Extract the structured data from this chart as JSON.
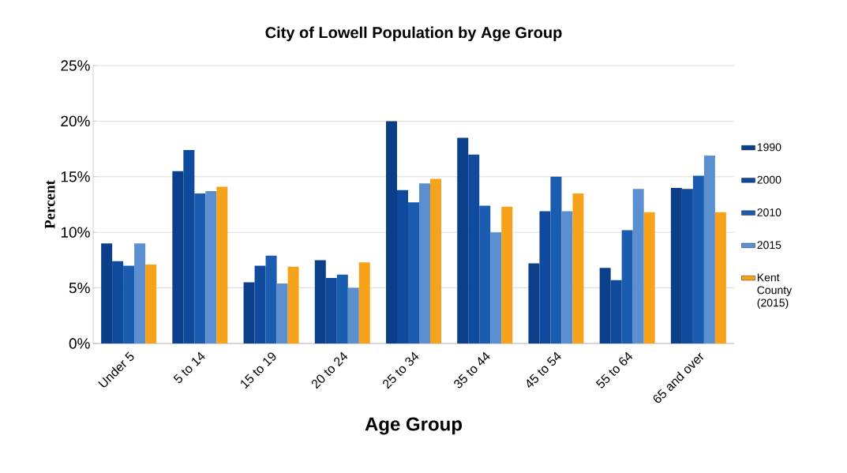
{
  "chart_data": {
    "type": "bar",
    "title": "City of Lowell Population by Age Group",
    "xlabel": "Age Group",
    "ylabel": "Percent",
    "categories": [
      "Under 5",
      "5 to 14",
      "15 to 19",
      "20 to 24",
      "25 to 34",
      "35 to 44",
      "45 to 54",
      "55 to 64",
      "65 and over"
    ],
    "series": [
      {
        "name": "1990",
        "color": "#0b3f8a",
        "values": [
          9.0,
          15.5,
          5.5,
          7.5,
          20.0,
          18.5,
          7.2,
          6.8,
          14.0
        ]
      },
      {
        "name": "2000",
        "color": "#104a9c",
        "values": [
          7.4,
          17.4,
          7.0,
          5.9,
          13.8,
          17.0,
          11.9,
          5.7,
          13.9
        ]
      },
      {
        "name": "2010",
        "color": "#1a5cb0",
        "values": [
          7.0,
          13.5,
          7.9,
          6.2,
          12.7,
          12.4,
          15.0,
          10.2,
          15.1
        ]
      },
      {
        "name": "2015",
        "color": "#5b8fd0",
        "values": [
          9.0,
          13.7,
          5.4,
          5.0,
          14.4,
          10.0,
          11.9,
          13.9,
          16.9
        ]
      },
      {
        "name": "Kent County (2015)",
        "color": "#f7a21b",
        "values": [
          7.1,
          14.1,
          6.9,
          7.3,
          14.8,
          12.3,
          13.5,
          11.8,
          11.8
        ]
      }
    ],
    "ylim": [
      0,
      25
    ],
    "yticks": [
      {
        "value": 0,
        "label": "0%"
      },
      {
        "value": 5,
        "label": "5%"
      },
      {
        "value": 10,
        "label": "10%"
      },
      {
        "value": 15,
        "label": "15%"
      },
      {
        "value": 20,
        "label": "20%"
      },
      {
        "value": 25,
        "label": "25%"
      }
    ],
    "grid": "y",
    "legend": "right"
  }
}
